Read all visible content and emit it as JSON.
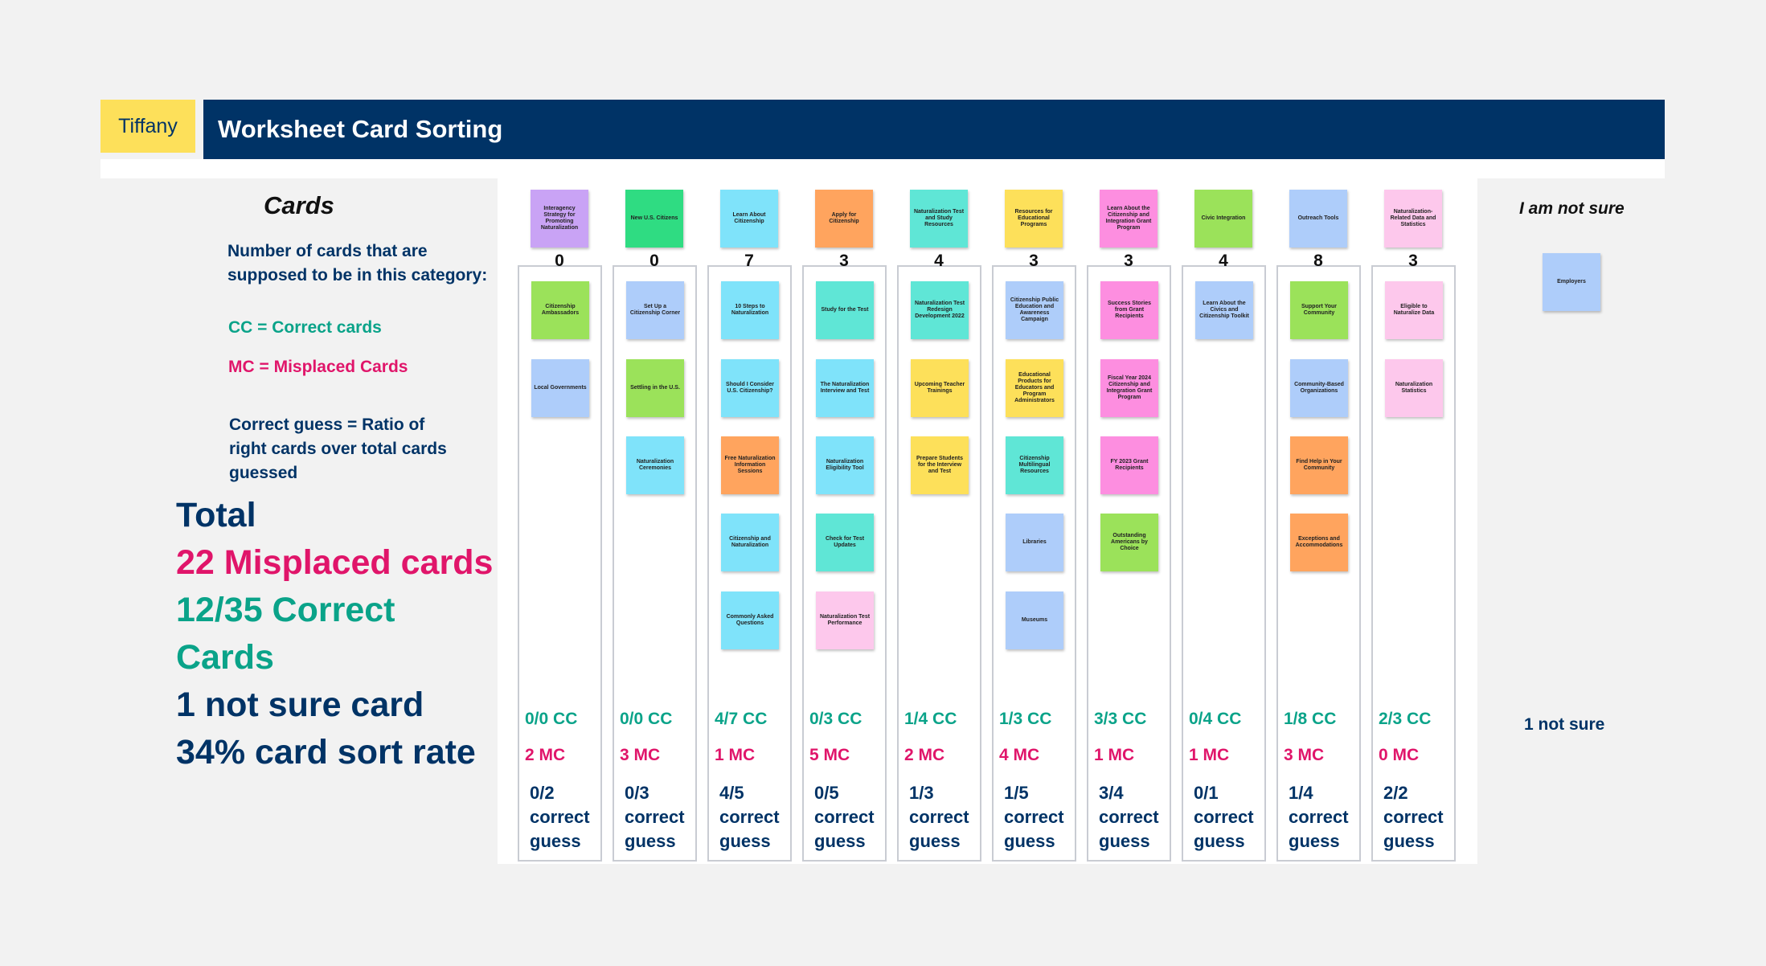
{
  "tag": "Tiffany",
  "title": "Worksheet Card Sorting",
  "left": {
    "heading": "Cards",
    "count_note": "Number of cards that are supposed to be in this category:",
    "cc_note": "CC = Correct cards",
    "mc_note": "MC = Misplaced Cards",
    "guess_note": "Correct guess = Ratio of right cards over total cards guessed",
    "totals": {
      "total": "Total",
      "misplaced": "22 Misplaced cards",
      "correct_1": "12/35 Correct",
      "correct_2": "Cards",
      "not_sure": "1 not sure card",
      "rate": "34% card sort rate"
    }
  },
  "colors": {
    "navy": "#003366",
    "teal": "#0aa389",
    "pink": "#e0156a",
    "tag_yellow": "#fde05a"
  },
  "columns": [
    {
      "header": "Interagency Strategy for Promoting Naturalization",
      "header_color": "#c9a3f5",
      "count": "0",
      "cards": [
        {
          "text": "Citizenship Ambassadors",
          "color": "#9be25a"
        },
        {
          "text": "Local Governments",
          "color": "#aecdfa"
        }
      ],
      "cc": "0/0 CC",
      "mc": "2 MC",
      "guess": [
        "0/2",
        "correct",
        "guess"
      ]
    },
    {
      "header": "New U.S. Citizens",
      "header_color": "#2fdc82",
      "count": "0",
      "cards": [
        {
          "text": "Set Up a Citizenship Corner",
          "color": "#aecdfa"
        },
        {
          "text": "Settling in the U.S.",
          "color": "#9be25a"
        },
        {
          "text": "Naturalization Ceremonies",
          "color": "#7fe3fa"
        }
      ],
      "cc": "0/0 CC",
      "mc": "3 MC",
      "guess": [
        "0/3",
        "correct",
        "guess"
      ]
    },
    {
      "header": "Learn About Citizenship",
      "header_color": "#7fe3fa",
      "count": "7",
      "cards": [
        {
          "text": "10 Steps to Naturalization",
          "color": "#7fe3fa"
        },
        {
          "text": "Should I Consider U.S. Citizenship?",
          "color": "#7fe3fa"
        },
        {
          "text": "Free Naturalization Information Sessions",
          "color": "#ffa45e"
        },
        {
          "text": "Citizenship and Naturalization",
          "color": "#7fe3fa"
        },
        {
          "text": "Commonly Asked Questions",
          "color": "#7fe3fa"
        }
      ],
      "cc": "4/7 CC",
      "mc": "1 MC",
      "guess": [
        "4/5",
        "correct",
        "guess"
      ]
    },
    {
      "header": "Apply for Citizenship",
      "header_color": "#ffa45e",
      "count": "3",
      "cards": [
        {
          "text": "Study for the Test",
          "color": "#5fe6d6"
        },
        {
          "text": "The Naturalization Interview and Test",
          "color": "#7fe3fa"
        },
        {
          "text": "Naturalization Eligibility Tool",
          "color": "#7fe3fa"
        },
        {
          "text": "Check for Test Updates",
          "color": "#5fe6d6"
        },
        {
          "text": "Naturalization Test Performance",
          "color": "#fdc8ec"
        }
      ],
      "cc": "0/3 CC",
      "mc": "5 MC",
      "guess": [
        "0/5",
        "correct",
        "guess"
      ]
    },
    {
      "header": "Naturalization Test and Study Resources",
      "header_color": "#5fe6d6",
      "count": "4",
      "cards": [
        {
          "text": "Naturalization Test Redesign Development 2022",
          "color": "#5fe6d6"
        },
        {
          "text": "Upcoming Teacher Trainings",
          "color": "#fde05a"
        },
        {
          "text": "Prepare Students for the Interview and Test",
          "color": "#fde05a"
        }
      ],
      "cc": "1/4 CC",
      "mc": "2 MC",
      "guess": [
        "1/3",
        "correct",
        "guess"
      ]
    },
    {
      "header": "Resources for Educational Programs",
      "header_color": "#fde05a",
      "count": "3",
      "cards": [
        {
          "text": "Citizenship Public Education and Awareness Campaign",
          "color": "#aecdfa"
        },
        {
          "text": "Educational Products for Educators and Program Administrators",
          "color": "#fde05a"
        },
        {
          "text": "Citizenship Multilingual Resources",
          "color": "#5fe6d6"
        },
        {
          "text": "Libraries",
          "color": "#aecdfa"
        },
        {
          "text": "Museums",
          "color": "#aecdfa"
        }
      ],
      "cc": "1/3 CC",
      "mc": "4 MC",
      "guess": [
        "1/5",
        "correct",
        "guess"
      ]
    },
    {
      "header": "Learn About the Citizenship and Integration Grant Program",
      "header_color": "#fd8ee0",
      "count": "3",
      "cards": [
        {
          "text": "Success Stories from Grant Recipients",
          "color": "#fd8ee0"
        },
        {
          "text": "Fiscal Year 2024 Citizenship and Integration Grant Program",
          "color": "#fd8ee0"
        },
        {
          "text": "FY 2023 Grant Recipients",
          "color": "#fd8ee0"
        },
        {
          "text": "Outstanding Americans by Choice",
          "color": "#9be25a"
        }
      ],
      "cc": "3/3 CC",
      "mc": "1 MC",
      "guess": [
        "3/4",
        "correct",
        "guess"
      ]
    },
    {
      "header": "Civic Integration",
      "header_color": "#9be25a",
      "count": "4",
      "cards": [
        {
          "text": "Learn About the Civics and Citizenship Toolkit",
          "color": "#aecdfa"
        }
      ],
      "cc": "0/4 CC",
      "mc": "1 MC",
      "guess": [
        "0/1",
        "correct",
        "guess"
      ]
    },
    {
      "header": "Outreach Tools",
      "header_color": "#aecdfa",
      "count": "8",
      "cards": [
        {
          "text": "Support Your Community",
          "color": "#9be25a"
        },
        {
          "text": "Community-Based Organizations",
          "color": "#aecdfa"
        },
        {
          "text": "Find Help in Your Community",
          "color": "#ffa45e"
        },
        {
          "text": "Exceptions and Accommodations",
          "color": "#ffa45e"
        }
      ],
      "cc": "1/8 CC",
      "mc": "3 MC",
      "guess": [
        "1/4",
        "correct",
        "guess"
      ]
    },
    {
      "header": "Naturalization-Related Data and Statistics",
      "header_color": "#fdc8ec",
      "count": "3",
      "cards": [
        {
          "text": "Eligible to Naturalize Data",
          "color": "#fdc8ec"
        },
        {
          "text": "Naturalization Statistics",
          "color": "#fdc8ec"
        }
      ],
      "cc": "2/3 CC",
      "mc": "0 MC",
      "guess": [
        "2/2",
        "correct",
        "guess"
      ]
    }
  ],
  "not_sure": {
    "heading": "I am not sure",
    "card": {
      "text": "Employers",
      "color": "#aecdfa"
    },
    "stat": "1 not sure"
  }
}
